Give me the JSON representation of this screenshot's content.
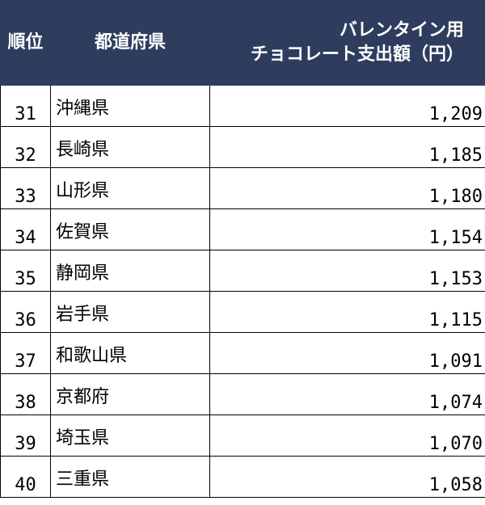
{
  "table": {
    "headers": {
      "rank": "順位",
      "prefecture": "都道府県",
      "amount_line1": "バレンタイン用",
      "amount_line2": "チョコレート支出額（円）"
    },
    "rows": [
      {
        "rank": "31",
        "prefecture": "沖縄県",
        "amount": "1,209"
      },
      {
        "rank": "32",
        "prefecture": "長崎県",
        "amount": "1,185"
      },
      {
        "rank": "33",
        "prefecture": "山形県",
        "amount": "1,180"
      },
      {
        "rank": "34",
        "prefecture": "佐賀県",
        "amount": "1,154"
      },
      {
        "rank": "35",
        "prefecture": "静岡県",
        "amount": "1,153"
      },
      {
        "rank": "36",
        "prefecture": "岩手県",
        "amount": "1,115"
      },
      {
        "rank": "37",
        "prefecture": "和歌山県",
        "amount": "1,091"
      },
      {
        "rank": "38",
        "prefecture": "京都府",
        "amount": "1,074"
      },
      {
        "rank": "39",
        "prefecture": "埼玉県",
        "amount": "1,070"
      },
      {
        "rank": "40",
        "prefecture": "三重県",
        "amount": "1,058"
      }
    ]
  },
  "colors": {
    "header_background": "#2e3d5e",
    "header_text": "#ffffff",
    "grid_line": "#000000"
  }
}
